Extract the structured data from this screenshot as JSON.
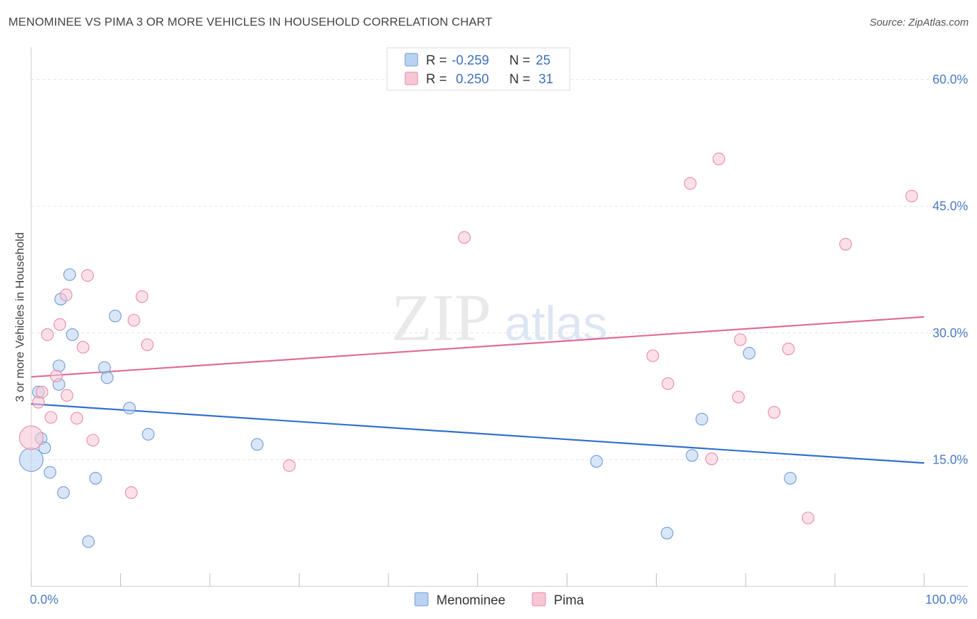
{
  "title": "MENOMINEE VS PIMA 3 OR MORE VEHICLES IN HOUSEHOLD CORRELATION CHART",
  "source": "Source: ZipAtlas.com",
  "watermark": {
    "zip": "ZIP",
    "atlas": "atlas"
  },
  "colors": {
    "menominee_fill": "#b9d2f1",
    "menominee_stroke": "#6f9ad6",
    "menominee_line": "#2f6fcc",
    "pima_fill": "#f7c6d5",
    "pima_stroke": "#e88aa8",
    "pima_line": "#e06a95",
    "grid": "#e3e3e3",
    "axis_text": "#4a7cc7"
  },
  "legend": {
    "row1": {
      "r_label": "R = ",
      "r_value": "-0.259",
      "n_label": "N = ",
      "n_value": "25"
    },
    "row2": {
      "r_label": "R = ",
      "r_value": "0.250",
      "n_label": "N = ",
      "n_value": "31"
    }
  },
  "chart_data": {
    "type": "scatter",
    "title": "MENOMINEE VS PIMA 3 OR MORE VEHICLES IN HOUSEHOLD CORRELATION CHART",
    "xlabel": "",
    "ylabel": "3 or more Vehicles in Household",
    "xlim": [
      0,
      100
    ],
    "ylim": [
      0,
      63
    ],
    "y_ticks": [
      {
        "value": 15,
        "label": "15.0%"
      },
      {
        "value": 30,
        "label": "30.0%"
      },
      {
        "value": 45,
        "label": "45.0%"
      },
      {
        "value": 60,
        "label": "60.0%"
      }
    ],
    "x_ticks": [
      {
        "value": 0,
        "label": "0.0%"
      },
      {
        "value": 100,
        "label": "100.0%"
      }
    ],
    "x_minor_ticks": [
      0,
      10,
      20,
      30,
      40,
      50,
      60,
      70,
      80,
      90,
      100
    ],
    "series": [
      {
        "name": "Menominee",
        "r": -0.259,
        "n": 25,
        "trend": {
          "x": [
            0,
            100
          ],
          "y": [
            21.6,
            14.6
          ]
        },
        "points": [
          {
            "x": 0.0,
            "y": 15.0,
            "big": true
          },
          {
            "x": 0.8,
            "y": 23.0
          },
          {
            "x": 1.1,
            "y": 17.5
          },
          {
            "x": 1.5,
            "y": 16.4
          },
          {
            "x": 2.1,
            "y": 13.5
          },
          {
            "x": 3.1,
            "y": 23.9
          },
          {
            "x": 3.1,
            "y": 26.1
          },
          {
            "x": 3.3,
            "y": 34.0
          },
          {
            "x": 3.6,
            "y": 11.1
          },
          {
            "x": 4.3,
            "y": 36.9
          },
          {
            "x": 4.6,
            "y": 29.8
          },
          {
            "x": 6.4,
            "y": 5.3
          },
          {
            "x": 7.2,
            "y": 12.8
          },
          {
            "x": 8.2,
            "y": 25.9
          },
          {
            "x": 8.5,
            "y": 24.7
          },
          {
            "x": 9.4,
            "y": 32.0
          },
          {
            "x": 11.0,
            "y": 21.1
          },
          {
            "x": 13.1,
            "y": 18.0
          },
          {
            "x": 25.3,
            "y": 16.8
          },
          {
            "x": 63.3,
            "y": 14.8
          },
          {
            "x": 71.2,
            "y": 6.3
          },
          {
            "x": 74.0,
            "y": 15.5
          },
          {
            "x": 75.1,
            "y": 19.8
          },
          {
            "x": 80.4,
            "y": 27.6
          },
          {
            "x": 85.0,
            "y": 12.8
          }
        ]
      },
      {
        "name": "Pima",
        "r": 0.25,
        "n": 31,
        "trend": {
          "x": [
            0,
            100
          ],
          "y": [
            24.8,
            31.9
          ]
        },
        "points": [
          {
            "x": 0.0,
            "y": 17.6,
            "big": true
          },
          {
            "x": 0.8,
            "y": 21.8
          },
          {
            "x": 1.2,
            "y": 23.0
          },
          {
            "x": 1.8,
            "y": 29.8
          },
          {
            "x": 2.2,
            "y": 20.0
          },
          {
            "x": 2.8,
            "y": 24.9
          },
          {
            "x": 3.2,
            "y": 31.0
          },
          {
            "x": 4.0,
            "y": 22.6
          },
          {
            "x": 5.1,
            "y": 19.9
          },
          {
            "x": 6.3,
            "y": 36.8
          },
          {
            "x": 6.9,
            "y": 17.3
          },
          {
            "x": 3.9,
            "y": 34.5
          },
          {
            "x": 5.8,
            "y": 28.3
          },
          {
            "x": 11.2,
            "y": 11.1
          },
          {
            "x": 11.5,
            "y": 31.5
          },
          {
            "x": 12.4,
            "y": 34.3
          },
          {
            "x": 13.0,
            "y": 28.6
          },
          {
            "x": 28.9,
            "y": 14.3
          },
          {
            "x": 48.5,
            "y": 41.3
          },
          {
            "x": 69.6,
            "y": 27.3
          },
          {
            "x": 71.3,
            "y": 24.0
          },
          {
            "x": 73.8,
            "y": 47.7
          },
          {
            "x": 76.2,
            "y": 15.1
          },
          {
            "x": 77.0,
            "y": 50.6
          },
          {
            "x": 79.2,
            "y": 22.4
          },
          {
            "x": 79.4,
            "y": 29.2
          },
          {
            "x": 83.2,
            "y": 20.6
          },
          {
            "x": 84.8,
            "y": 28.1
          },
          {
            "x": 87.0,
            "y": 8.1
          },
          {
            "x": 91.2,
            "y": 40.5
          },
          {
            "x": 98.6,
            "y": 46.2
          }
        ]
      }
    ]
  }
}
